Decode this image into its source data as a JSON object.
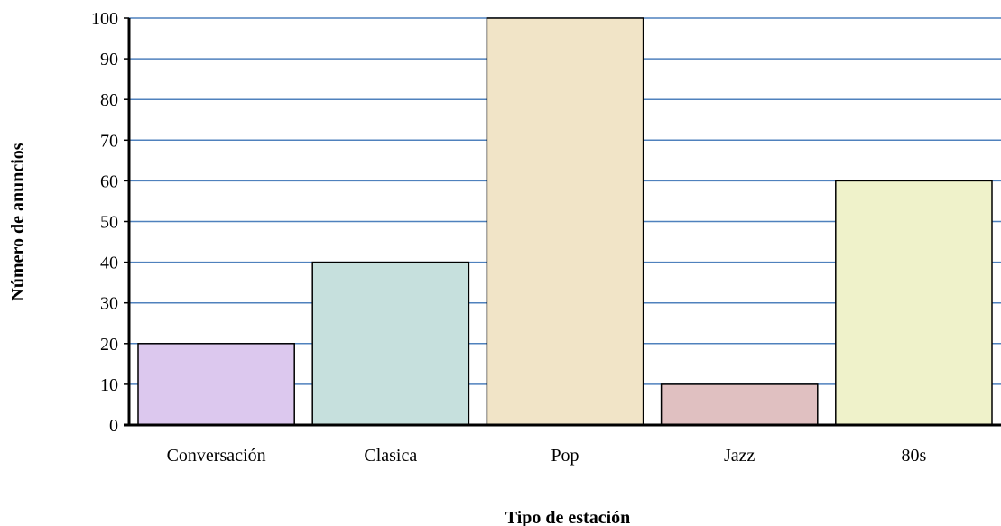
{
  "chart_data": {
    "type": "bar",
    "title": "",
    "xlabel": "Tipo de estación",
    "ylabel": "Número de anuncios",
    "categories": [
      "Conversación",
      "Clasica",
      "Pop",
      "Jazz",
      "80s"
    ],
    "values": [
      20,
      40,
      100,
      10,
      60
    ],
    "bar_colors": [
      "#dcc8ee",
      "#c6e0dd",
      "#f1e4c7",
      "#e0c0c1",
      "#eff2ca"
    ],
    "ylim": [
      0,
      100
    ],
    "yticks": [
      0,
      10,
      20,
      30,
      40,
      50,
      60,
      70,
      80,
      90,
      100
    ],
    "grid": true,
    "grid_color": "#4f81bd",
    "legend": "none"
  }
}
